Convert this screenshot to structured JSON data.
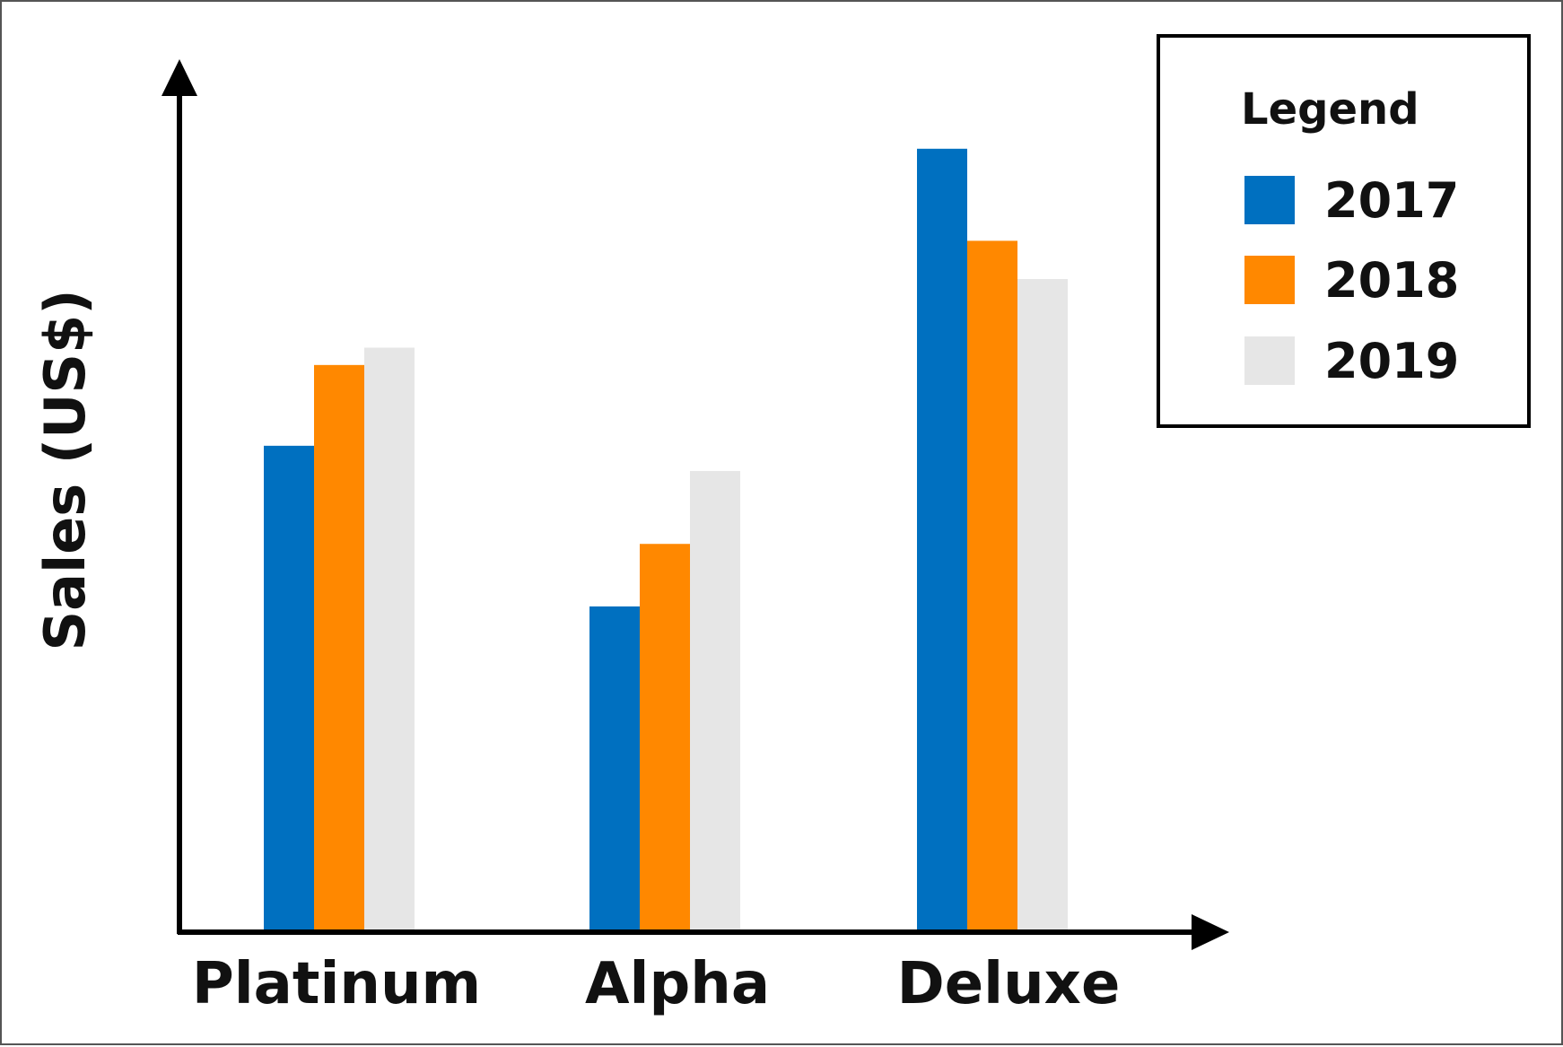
{
  "chart_data": {
    "type": "bar",
    "title": "",
    "xlabel": "",
    "ylabel": "Sales (US$)",
    "ylim": [
      0,
      100
    ],
    "y_ticks_shown": false,
    "grid": false,
    "categories": [
      "Platinum",
      "Alpha",
      "Deluxe"
    ],
    "series": [
      {
        "name": "2017",
        "color": "#0070C0",
        "values": [
          55.8,
          37.3,
          90.0
        ]
      },
      {
        "name": "2018",
        "color": "#FF8800",
        "values": [
          65.1,
          44.5,
          79.4
        ]
      },
      {
        "name": "2019",
        "color": "#E6E6E6",
        "values": [
          67.1,
          52.9,
          75.0
        ]
      }
    ],
    "legend": {
      "title": "Legend",
      "placement": "top-right"
    }
  }
}
